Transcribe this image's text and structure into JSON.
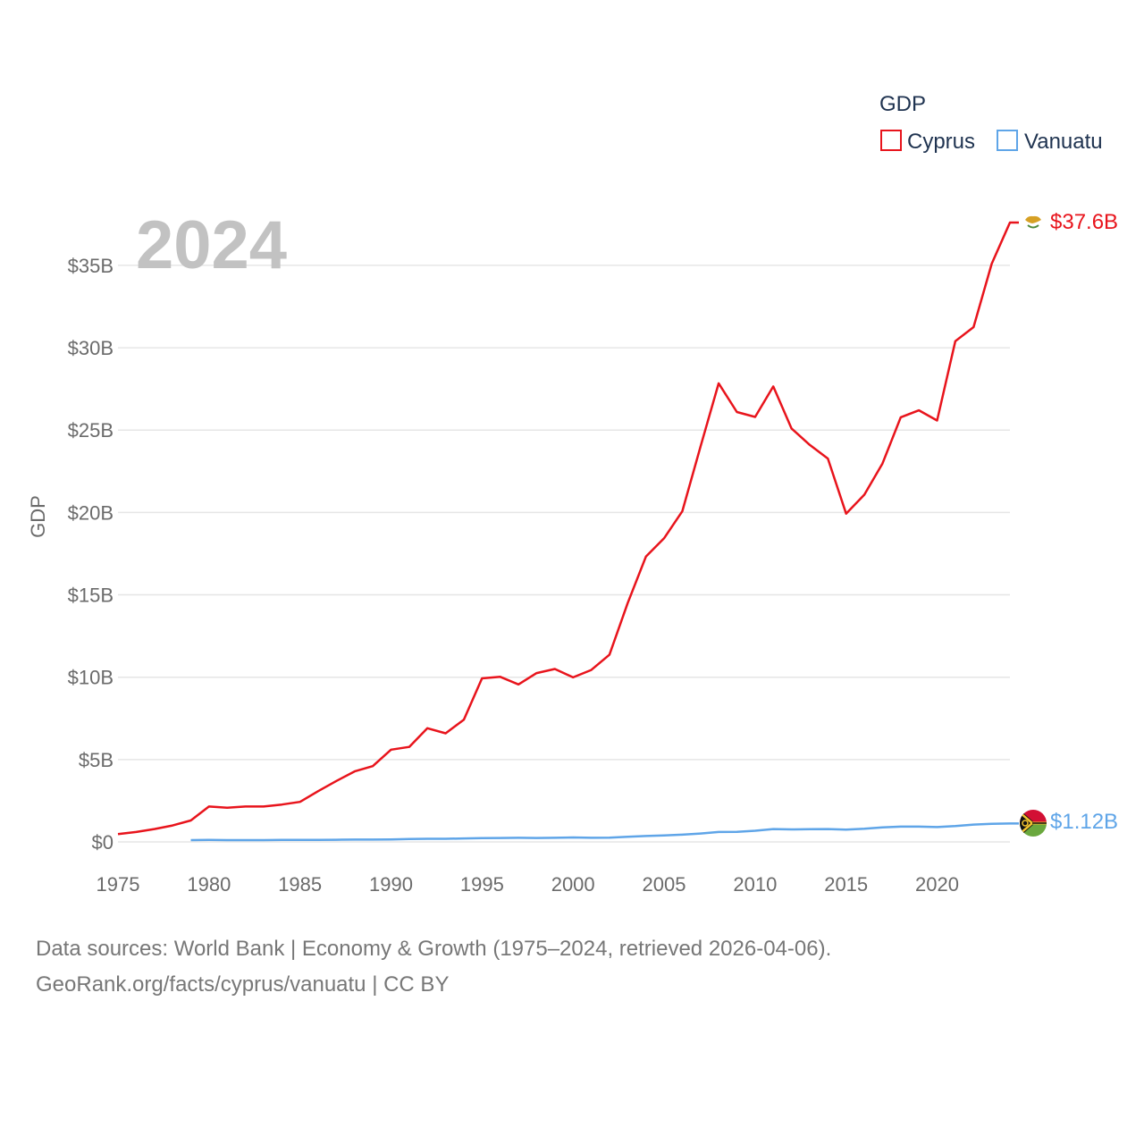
{
  "chart_data": {
    "type": "line",
    "title": "GDP",
    "ylabel": "GDP",
    "xlabel": "",
    "year_label": "2024",
    "xlim": [
      1975,
      2024
    ],
    "ylim": [
      0,
      37.6
    ],
    "x_ticks": [
      1975,
      1980,
      1985,
      1990,
      1995,
      2000,
      2005,
      2010,
      2015,
      2020
    ],
    "y_ticks": [
      {
        "value": 0,
        "label": "$0"
      },
      {
        "value": 5,
        "label": "$5B"
      },
      {
        "value": 10,
        "label": "$10B"
      },
      {
        "value": 15,
        "label": "$15B"
      },
      {
        "value": 20,
        "label": "$20B"
      },
      {
        "value": 25,
        "label": "$25B"
      },
      {
        "value": 30,
        "label": "$30B"
      },
      {
        "value": 35,
        "label": "$35B"
      }
    ],
    "series": [
      {
        "name": "Cyprus",
        "color": "#e8141c",
        "end_label": "$37.6B",
        "x": [
          1975,
          1976,
          1977,
          1978,
          1979,
          1980,
          1981,
          1982,
          1983,
          1984,
          1985,
          1986,
          1987,
          1988,
          1989,
          1990,
          1991,
          1992,
          1993,
          1994,
          1995,
          1996,
          1997,
          1998,
          1999,
          2000,
          2001,
          2002,
          2003,
          2004,
          2005,
          2006,
          2007,
          2008,
          2009,
          2010,
          2011,
          2012,
          2013,
          2014,
          2015,
          2016,
          2017,
          2018,
          2019,
          2020,
          2021,
          2022,
          2023,
          2024
        ],
        "values": [
          0.48,
          0.6,
          0.78,
          1.0,
          1.3,
          2.15,
          2.08,
          2.15,
          2.15,
          2.27,
          2.43,
          3.08,
          3.7,
          4.28,
          4.6,
          5.6,
          5.77,
          6.9,
          6.59,
          7.42,
          9.93,
          10.02,
          9.56,
          10.25,
          10.5,
          9.99,
          10.44,
          11.36,
          14.5,
          17.32,
          18.43,
          20.07,
          24.0,
          27.84,
          26.1,
          25.8,
          27.65,
          25.1,
          24.1,
          23.27,
          19.93,
          21.08,
          22.97,
          25.78,
          26.2,
          25.58,
          30.4,
          31.25,
          35.1,
          37.6
        ]
      },
      {
        "name": "Vanuatu",
        "color": "#5fa5e8",
        "end_label": "$1.12B",
        "x": [
          1979,
          1980,
          1981,
          1982,
          1983,
          1984,
          1985,
          1986,
          1987,
          1988,
          1989,
          1990,
          1991,
          1992,
          1993,
          1994,
          1995,
          1996,
          1997,
          1998,
          1999,
          2000,
          2001,
          2002,
          2003,
          2004,
          2005,
          2006,
          2007,
          2008,
          2009,
          2010,
          2011,
          2012,
          2013,
          2014,
          2015,
          2016,
          2017,
          2018,
          2019,
          2020,
          2021,
          2022,
          2023,
          2024
        ],
        "values": [
          0.11,
          0.12,
          0.11,
          0.11,
          0.11,
          0.12,
          0.12,
          0.12,
          0.13,
          0.14,
          0.14,
          0.15,
          0.18,
          0.19,
          0.19,
          0.21,
          0.23,
          0.24,
          0.25,
          0.24,
          0.25,
          0.27,
          0.25,
          0.26,
          0.31,
          0.36,
          0.39,
          0.44,
          0.51,
          0.6,
          0.61,
          0.68,
          0.78,
          0.76,
          0.77,
          0.78,
          0.75,
          0.8,
          0.88,
          0.93,
          0.93,
          0.9,
          0.96,
          1.05,
          1.1,
          1.12
        ]
      }
    ],
    "legend": {
      "title": "GDP",
      "position": "top-right"
    }
  },
  "source": {
    "line1": "Data sources: World Bank | Economy & Growth (1975–2024, retrieved 2026-04-06).",
    "line2": "GeoRank.org/facts/cyprus/vanuatu | CC BY"
  },
  "icons": {
    "cyprus": "cyprus-flag-icon",
    "vanuatu": "vanuatu-flag-icon"
  }
}
